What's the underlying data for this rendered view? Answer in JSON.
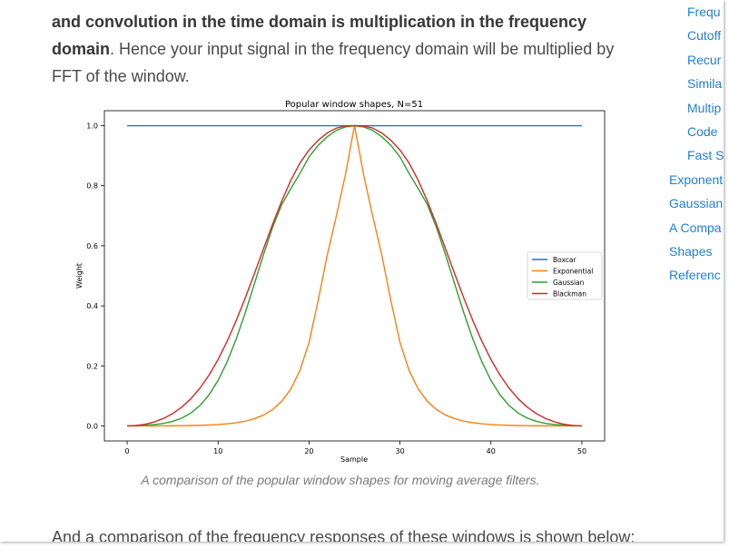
{
  "article": {
    "para_top_bold_1": "and convolution in the time domain is multiplication in the frequency domain",
    "para_top_rest": ". Hence your input signal in the frequency domain will be multiplied by FFT of the window.",
    "caption": "A comparison of the popular window shapes for moving average filters.",
    "para_bottom": "And a comparison of the frequency responses of these windows is shown below:"
  },
  "toc": {
    "items": [
      {
        "label": "Frequ",
        "level": 2
      },
      {
        "label": "Cutoff",
        "level": 2
      },
      {
        "label": "Recur",
        "level": 2
      },
      {
        "label": "Simila",
        "level": 2
      },
      {
        "label": "Multip",
        "level": 2
      },
      {
        "label": "Code",
        "level": 2
      },
      {
        "label": "Fast S",
        "level": 2
      },
      {
        "label": "Exponent",
        "level": 1
      },
      {
        "label": "Gaussian",
        "level": 1
      },
      {
        "label": "A Compa",
        "level": 1
      },
      {
        "label": "Shapes",
        "level": 1
      },
      {
        "label": "Referenc",
        "level": 1
      }
    ]
  },
  "chart_data": {
    "type": "line",
    "title": "Popular window shapes, N=51",
    "xlabel": "Sample",
    "ylabel": "Weight",
    "xlim": [
      -2.5,
      52.5
    ],
    "ylim": [
      -0.05,
      1.05
    ],
    "xticks": [
      0,
      10,
      20,
      30,
      40,
      50
    ],
    "yticks": [
      0.0,
      0.2,
      0.4,
      0.6,
      0.8,
      1.0
    ],
    "ytick_labels": [
      "0.0",
      "0.2",
      "0.4",
      "0.6",
      "0.8",
      "1.0"
    ],
    "grid": false,
    "legend": "center-right",
    "x": [
      0,
      1,
      2,
      3,
      4,
      5,
      6,
      7,
      8,
      9,
      10,
      11,
      12,
      13,
      14,
      15,
      16,
      17,
      18,
      19,
      20,
      21,
      22,
      23,
      24,
      25,
      26,
      27,
      28,
      29,
      30,
      31,
      32,
      33,
      34,
      35,
      36,
      37,
      38,
      39,
      40,
      41,
      42,
      43,
      44,
      45,
      46,
      47,
      48,
      49,
      50
    ],
    "series": [
      {
        "name": "Boxcar",
        "color": "#1f77b4",
        "values": [
          1,
          1,
          1,
          1,
          1,
          1,
          1,
          1,
          1,
          1,
          1,
          1,
          1,
          1,
          1,
          1,
          1,
          1,
          1,
          1,
          1,
          1,
          1,
          1,
          1,
          1,
          1,
          1,
          1,
          1,
          1,
          1,
          1,
          1,
          1,
          1,
          1,
          1,
          1,
          1,
          1,
          1,
          1,
          1,
          1,
          1,
          1,
          1,
          1,
          1,
          1
        ]
      },
      {
        "name": "Exponential",
        "color": "#ff7f0e",
        "values": [
          0.0,
          0.0001,
          0.0002,
          0.0002,
          0.0004,
          0.0006,
          0.0009,
          0.0014,
          0.0021,
          0.0031,
          0.0047,
          0.0071,
          0.0107,
          0.0161,
          0.0242,
          0.0363,
          0.0546,
          0.082,
          0.1231,
          0.1849,
          0.278,
          0.417,
          0.569,
          0.699,
          0.837,
          1.0,
          0.837,
          0.699,
          0.569,
          0.417,
          0.278,
          0.1849,
          0.1231,
          0.082,
          0.0546,
          0.0363,
          0.0242,
          0.0161,
          0.0107,
          0.0071,
          0.0047,
          0.0031,
          0.0021,
          0.0014,
          0.0009,
          0.0006,
          0.0004,
          0.0002,
          0.0002,
          0.0001,
          0.0
        ]
      },
      {
        "name": "Gaussian",
        "color": "#2ca02c",
        "values": [
          0.0,
          0.0011,
          0.0023,
          0.0045,
          0.0084,
          0.0151,
          0.0259,
          0.0427,
          0.0678,
          0.1034,
          0.1517,
          0.214,
          0.2901,
          0.3783,
          0.4742,
          0.5714,
          0.6621,
          0.7378,
          0.7906,
          0.8409,
          0.8961,
          0.9345,
          0.9633,
          0.9842,
          0.996,
          1.0,
          0.996,
          0.9842,
          0.9633,
          0.9345,
          0.8961,
          0.8409,
          0.7906,
          0.7378,
          0.6621,
          0.5714,
          0.4742,
          0.3783,
          0.2901,
          0.214,
          0.1517,
          0.1034,
          0.0678,
          0.0427,
          0.0259,
          0.0151,
          0.0084,
          0.0045,
          0.0023,
          0.0011,
          0.0
        ]
      },
      {
        "name": "Blackman",
        "color": "#d62728",
        "values": [
          0.0,
          0.0014,
          0.0058,
          0.0134,
          0.0249,
          0.0409,
          0.0624,
          0.0903,
          0.1256,
          0.1691,
          0.2213,
          0.2823,
          0.3514,
          0.4273,
          0.508,
          0.5907,
          0.6723,
          0.7494,
          0.8183,
          0.8756,
          0.9189,
          0.9512,
          0.9758,
          0.992,
          0.999,
          1.0,
          0.999,
          0.992,
          0.9758,
          0.9512,
          0.9189,
          0.8756,
          0.8183,
          0.7494,
          0.6723,
          0.5907,
          0.508,
          0.4273,
          0.3514,
          0.2823,
          0.2213,
          0.1691,
          0.1256,
          0.0903,
          0.0624,
          0.0409,
          0.0249,
          0.0134,
          0.0058,
          0.0014,
          0.0
        ]
      }
    ]
  }
}
